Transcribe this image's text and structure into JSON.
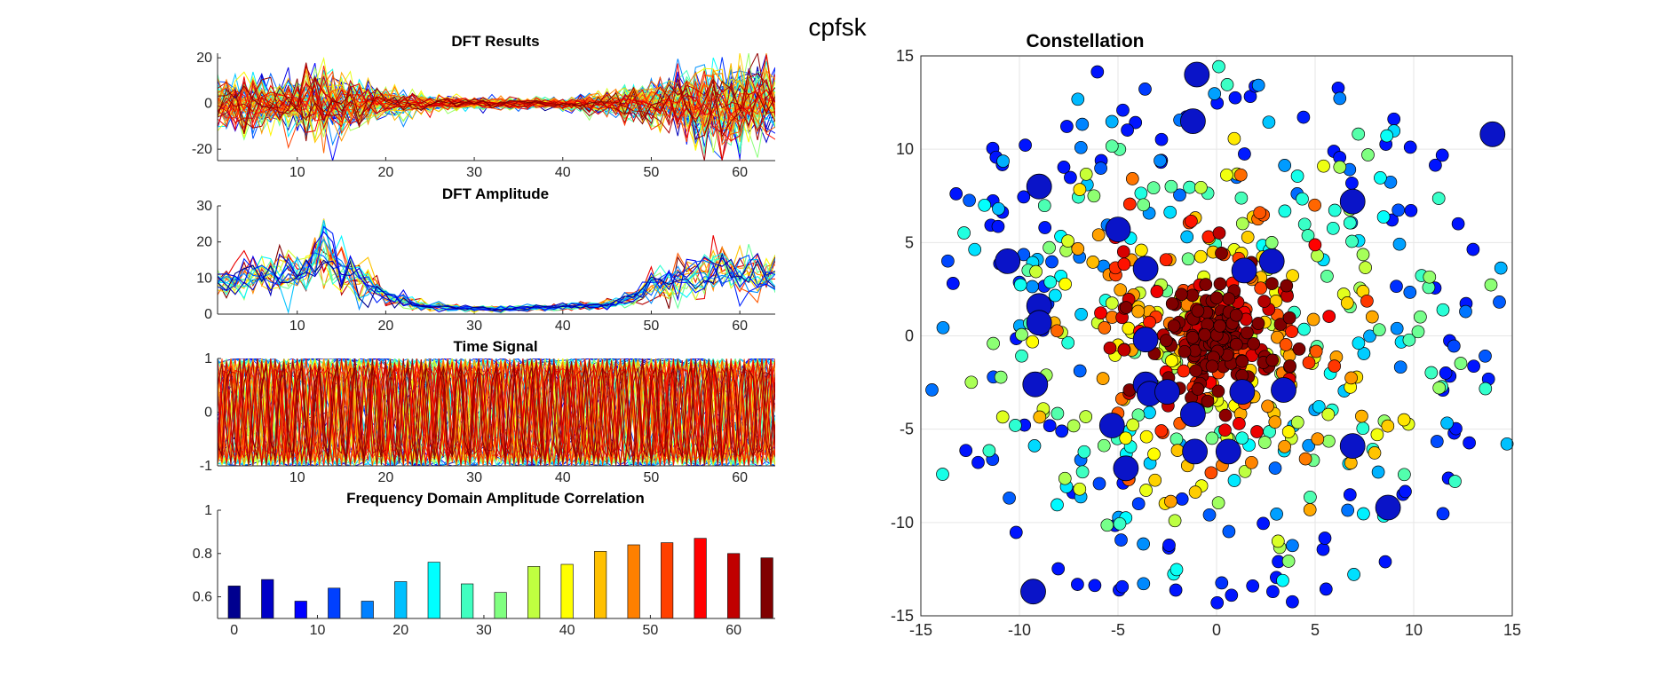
{
  "figure_title": "cpfsk",
  "colormap": [
    "#00008f",
    "#0000ff",
    "#0080ff",
    "#00ffff",
    "#80ff80",
    "#ffff00",
    "#ff8000",
    "#ff0000",
    "#800000"
  ],
  "chart_data": [
    {
      "id": "dft-results",
      "type": "line",
      "title": "DFT Results",
      "xlim": [
        1,
        64
      ],
      "ylim": [
        -25,
        22
      ],
      "xticks": [
        10,
        20,
        30,
        40,
        50,
        60
      ],
      "yticks": [
        -20,
        0,
        20
      ],
      "series_count": 64,
      "envelope": {
        "x": [
          1,
          4,
          7,
          10,
          13,
          16,
          20,
          25,
          30,
          35,
          40,
          45,
          48,
          52,
          55,
          58,
          61,
          64
        ],
        "amplitude": [
          10,
          10,
          9,
          10,
          14,
          9,
          5,
          3,
          2,
          2,
          2,
          4,
          7,
          9,
          13,
          16,
          15,
          12
        ]
      }
    },
    {
      "id": "dft-amplitude",
      "type": "line",
      "title": "DFT Amplitude",
      "xlim": [
        1,
        64
      ],
      "ylim": [
        0,
        30
      ],
      "xticks": [
        10,
        20,
        30,
        40,
        50,
        60
      ],
      "yticks": [
        0,
        10,
        20,
        30
      ],
      "series_count": 20,
      "profile": {
        "x": [
          1,
          4,
          7,
          10,
          13,
          16,
          18,
          20,
          25,
          30,
          35,
          40,
          45,
          48,
          50,
          52,
          55,
          58,
          61,
          64
        ],
        "mean": [
          8,
          10,
          11,
          11,
          15,
          11,
          9,
          5,
          2,
          1.5,
          1.5,
          2,
          2.5,
          5,
          8,
          9,
          11,
          13,
          12,
          11
        ]
      }
    },
    {
      "id": "time-signal",
      "type": "line",
      "title": "Time Signal",
      "xlim": [
        1,
        64
      ],
      "ylim": [
        -1,
        1
      ],
      "xticks": [
        10,
        20,
        30,
        40,
        50,
        60
      ],
      "yticks": [
        -1,
        0,
        1
      ],
      "series_count": 64
    },
    {
      "id": "freq-corr",
      "type": "bar",
      "title": "Frequency Domain Amplitude Correlation",
      "xlim": [
        -2,
        65
      ],
      "ylim": [
        0.5,
        1.0
      ],
      "xticks": [
        0,
        10,
        20,
        30,
        40,
        50,
        60
      ],
      "yticks": [
        0.6,
        0.8,
        1
      ],
      "x": [
        0,
        4,
        8,
        12,
        16,
        20,
        24,
        28,
        32,
        36,
        40,
        44,
        48,
        52,
        56,
        60,
        64
      ],
      "values": [
        0.65,
        0.68,
        0.58,
        0.64,
        0.58,
        0.67,
        0.76,
        0.66,
        0.62,
        0.74,
        0.75,
        0.81,
        0.84,
        0.85,
        0.87,
        0.8,
        0.78
      ]
    },
    {
      "id": "constellation",
      "type": "scatter",
      "title": "Constellation",
      "xlim": [
        -15,
        15
      ],
      "ylim": [
        -15,
        15
      ],
      "xticks": [
        -15,
        -10,
        -5,
        0,
        5,
        10,
        15
      ],
      "yticks": [
        -15,
        -10,
        -5,
        0,
        5,
        10,
        15
      ],
      "grid": true,
      "large_points": [
        [
          -1,
          14
        ],
        [
          -1.2,
          11.5
        ],
        [
          14,
          10.8
        ],
        [
          -9,
          8
        ],
        [
          6.9,
          7.2
        ],
        [
          -5,
          5.7
        ],
        [
          -10.6,
          4
        ],
        [
          2.8,
          4
        ],
        [
          -3.6,
          3.6
        ],
        [
          1.4,
          3.5
        ],
        [
          -9,
          1.6
        ],
        [
          -9,
          0.7
        ],
        [
          -3.6,
          -0.2
        ],
        [
          -3.6,
          -2.6
        ],
        [
          -3.4,
          -3.1
        ],
        [
          1.3,
          -3
        ],
        [
          3.4,
          -2.9
        ],
        [
          -2.5,
          -3
        ],
        [
          -9.2,
          -2.6
        ],
        [
          -1.2,
          -4.2
        ],
        [
          -5.3,
          -4.8
        ],
        [
          -1.1,
          -6.2
        ],
        [
          0.6,
          -6.2
        ],
        [
          6.9,
          -5.9
        ],
        [
          -4.6,
          -7.1
        ],
        [
          8.7,
          -9.2
        ],
        [
          -9.3,
          -13.7
        ]
      ]
    }
  ]
}
